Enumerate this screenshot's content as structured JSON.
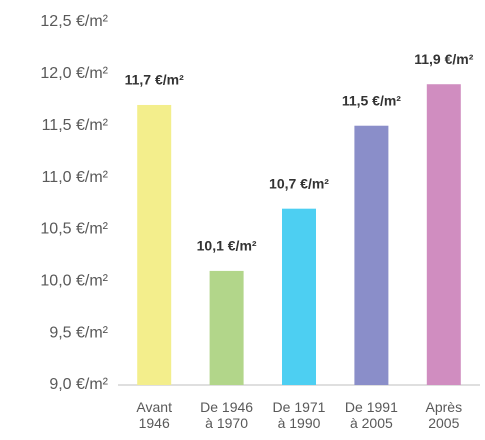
{
  "chart_data": {
    "type": "bar",
    "categories": [
      "Avant 1946",
      "De 1946 à 1970",
      "De 1971 à 1990",
      "De 1991 à 2005",
      "Après 2005"
    ],
    "values": [
      11.7,
      10.1,
      10.7,
      11.5,
      11.9
    ],
    "value_labels": [
      "11,7 €/m²",
      "10,1 €/m²",
      "10,7 €/m²",
      "11,5 €/m²",
      "11,9 €/m²"
    ],
    "colors": [
      "#f3ee8c",
      "#b2d68a",
      "#4dcff2",
      "#8a8ec9",
      "#d08dc0"
    ],
    "ylim": [
      9.0,
      12.5
    ],
    "yticks": [
      {
        "value": 9.0,
        "label": "9,0 €/m²"
      },
      {
        "value": 9.5,
        "label": "9,5 €/m²"
      },
      {
        "value": 10.0,
        "label": "10,0 €/m²"
      },
      {
        "value": 10.5,
        "label": "10,5 €/m²"
      },
      {
        "value": 11.0,
        "label": "11,0 €/m²"
      },
      {
        "value": 11.5,
        "label": "11,5 €/m²"
      },
      {
        "value": 12.0,
        "label": "12,0 €/m²"
      },
      {
        "value": 12.5,
        "label": "12,5 €/m²"
      }
    ],
    "grid": false
  }
}
